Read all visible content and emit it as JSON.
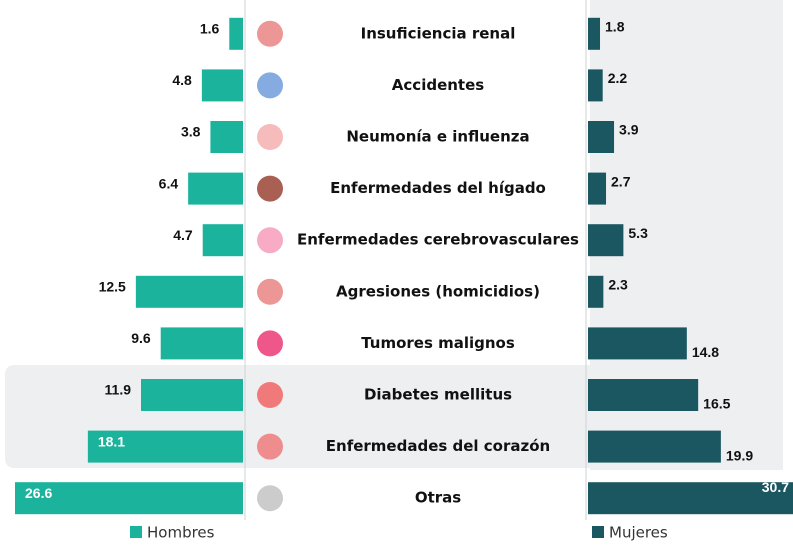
{
  "chart_data": {
    "type": "butterfly-bar",
    "categories": [
      "Insuficiencia renal",
      "Accidentes",
      "Neumonía e influenza",
      "Enfermedades del hígado",
      "Enfermedades cerebrovasculares",
      "Agresiones (homicidios)",
      "Tumores malignos",
      "Diabetes mellitus",
      "Enfermedades del corazón",
      "Otras"
    ],
    "series": [
      {
        "name": "Hombres",
        "color": "#1bb39c",
        "xlim": [
          0,
          26.6
        ],
        "values": [
          1.6,
          4.8,
          3.8,
          6.4,
          4.7,
          12.5,
          9.6,
          11.9,
          18.1,
          26.6
        ]
      },
      {
        "name": "Mujeres",
        "color": "#1b5761",
        "xlim": [
          0,
          30.7
        ],
        "values": [
          1.8,
          2.2,
          3.9,
          2.7,
          5.3,
          2.3,
          14.8,
          16.5,
          19.9,
          30.7
        ]
      }
    ]
  }
}
